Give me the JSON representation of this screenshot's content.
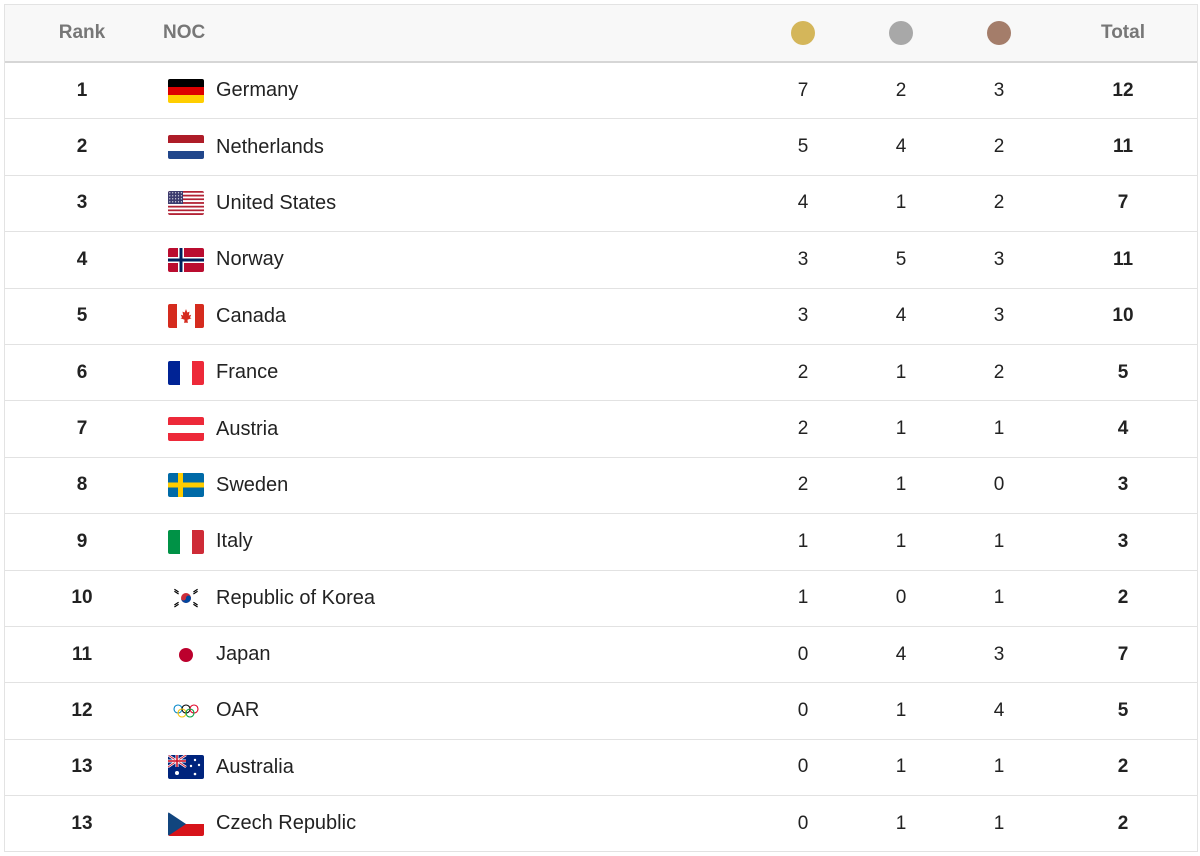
{
  "colors": {
    "gold": "#d4b65a",
    "silver": "#a8a8a8",
    "bronze": "#a47d6a"
  },
  "header": {
    "rank": "Rank",
    "noc": "NOC",
    "total": "Total",
    "gold_icon": "gold-medal-icon",
    "silver_icon": "silver-medal-icon",
    "bronze_icon": "bronze-medal-icon"
  },
  "rows": [
    {
      "rank": "1",
      "noc": "Germany",
      "flag": "germany-flag-icon",
      "gold": "7",
      "silver": "2",
      "bronze": "3",
      "total": "12"
    },
    {
      "rank": "2",
      "noc": "Netherlands",
      "flag": "netherlands-flag-icon",
      "gold": "5",
      "silver": "4",
      "bronze": "2",
      "total": "11"
    },
    {
      "rank": "3",
      "noc": "United States",
      "flag": "united-states-flag-icon",
      "gold": "4",
      "silver": "1",
      "bronze": "2",
      "total": "7"
    },
    {
      "rank": "4",
      "noc": "Norway",
      "flag": "norway-flag-icon",
      "gold": "3",
      "silver": "5",
      "bronze": "3",
      "total": "11"
    },
    {
      "rank": "5",
      "noc": "Canada",
      "flag": "canada-flag-icon",
      "gold": "3",
      "silver": "4",
      "bronze": "3",
      "total": "10"
    },
    {
      "rank": "6",
      "noc": "France",
      "flag": "france-flag-icon",
      "gold": "2",
      "silver": "1",
      "bronze": "2",
      "total": "5"
    },
    {
      "rank": "7",
      "noc": "Austria",
      "flag": "austria-flag-icon",
      "gold": "2",
      "silver": "1",
      "bronze": "1",
      "total": "4"
    },
    {
      "rank": "8",
      "noc": "Sweden",
      "flag": "sweden-flag-icon",
      "gold": "2",
      "silver": "1",
      "bronze": "0",
      "total": "3"
    },
    {
      "rank": "9",
      "noc": "Italy",
      "flag": "italy-flag-icon",
      "gold": "1",
      "silver": "1",
      "bronze": "1",
      "total": "3"
    },
    {
      "rank": "10",
      "noc": "Republic of Korea",
      "flag": "korea-flag-icon",
      "gold": "1",
      "silver": "0",
      "bronze": "1",
      "total": "2"
    },
    {
      "rank": "11",
      "noc": "Japan",
      "flag": "japan-flag-icon",
      "gold": "0",
      "silver": "4",
      "bronze": "3",
      "total": "7"
    },
    {
      "rank": "12",
      "noc": "OAR",
      "flag": "olympic-rings-flag-icon",
      "gold": "0",
      "silver": "1",
      "bronze": "4",
      "total": "5"
    },
    {
      "rank": "13",
      "noc": "Australia",
      "flag": "australia-flag-icon",
      "gold": "0",
      "silver": "1",
      "bronze": "1",
      "total": "2"
    },
    {
      "rank": "13",
      "noc": "Czech Republic",
      "flag": "czech-republic-flag-icon",
      "gold": "0",
      "silver": "1",
      "bronze": "1",
      "total": "2"
    }
  ]
}
